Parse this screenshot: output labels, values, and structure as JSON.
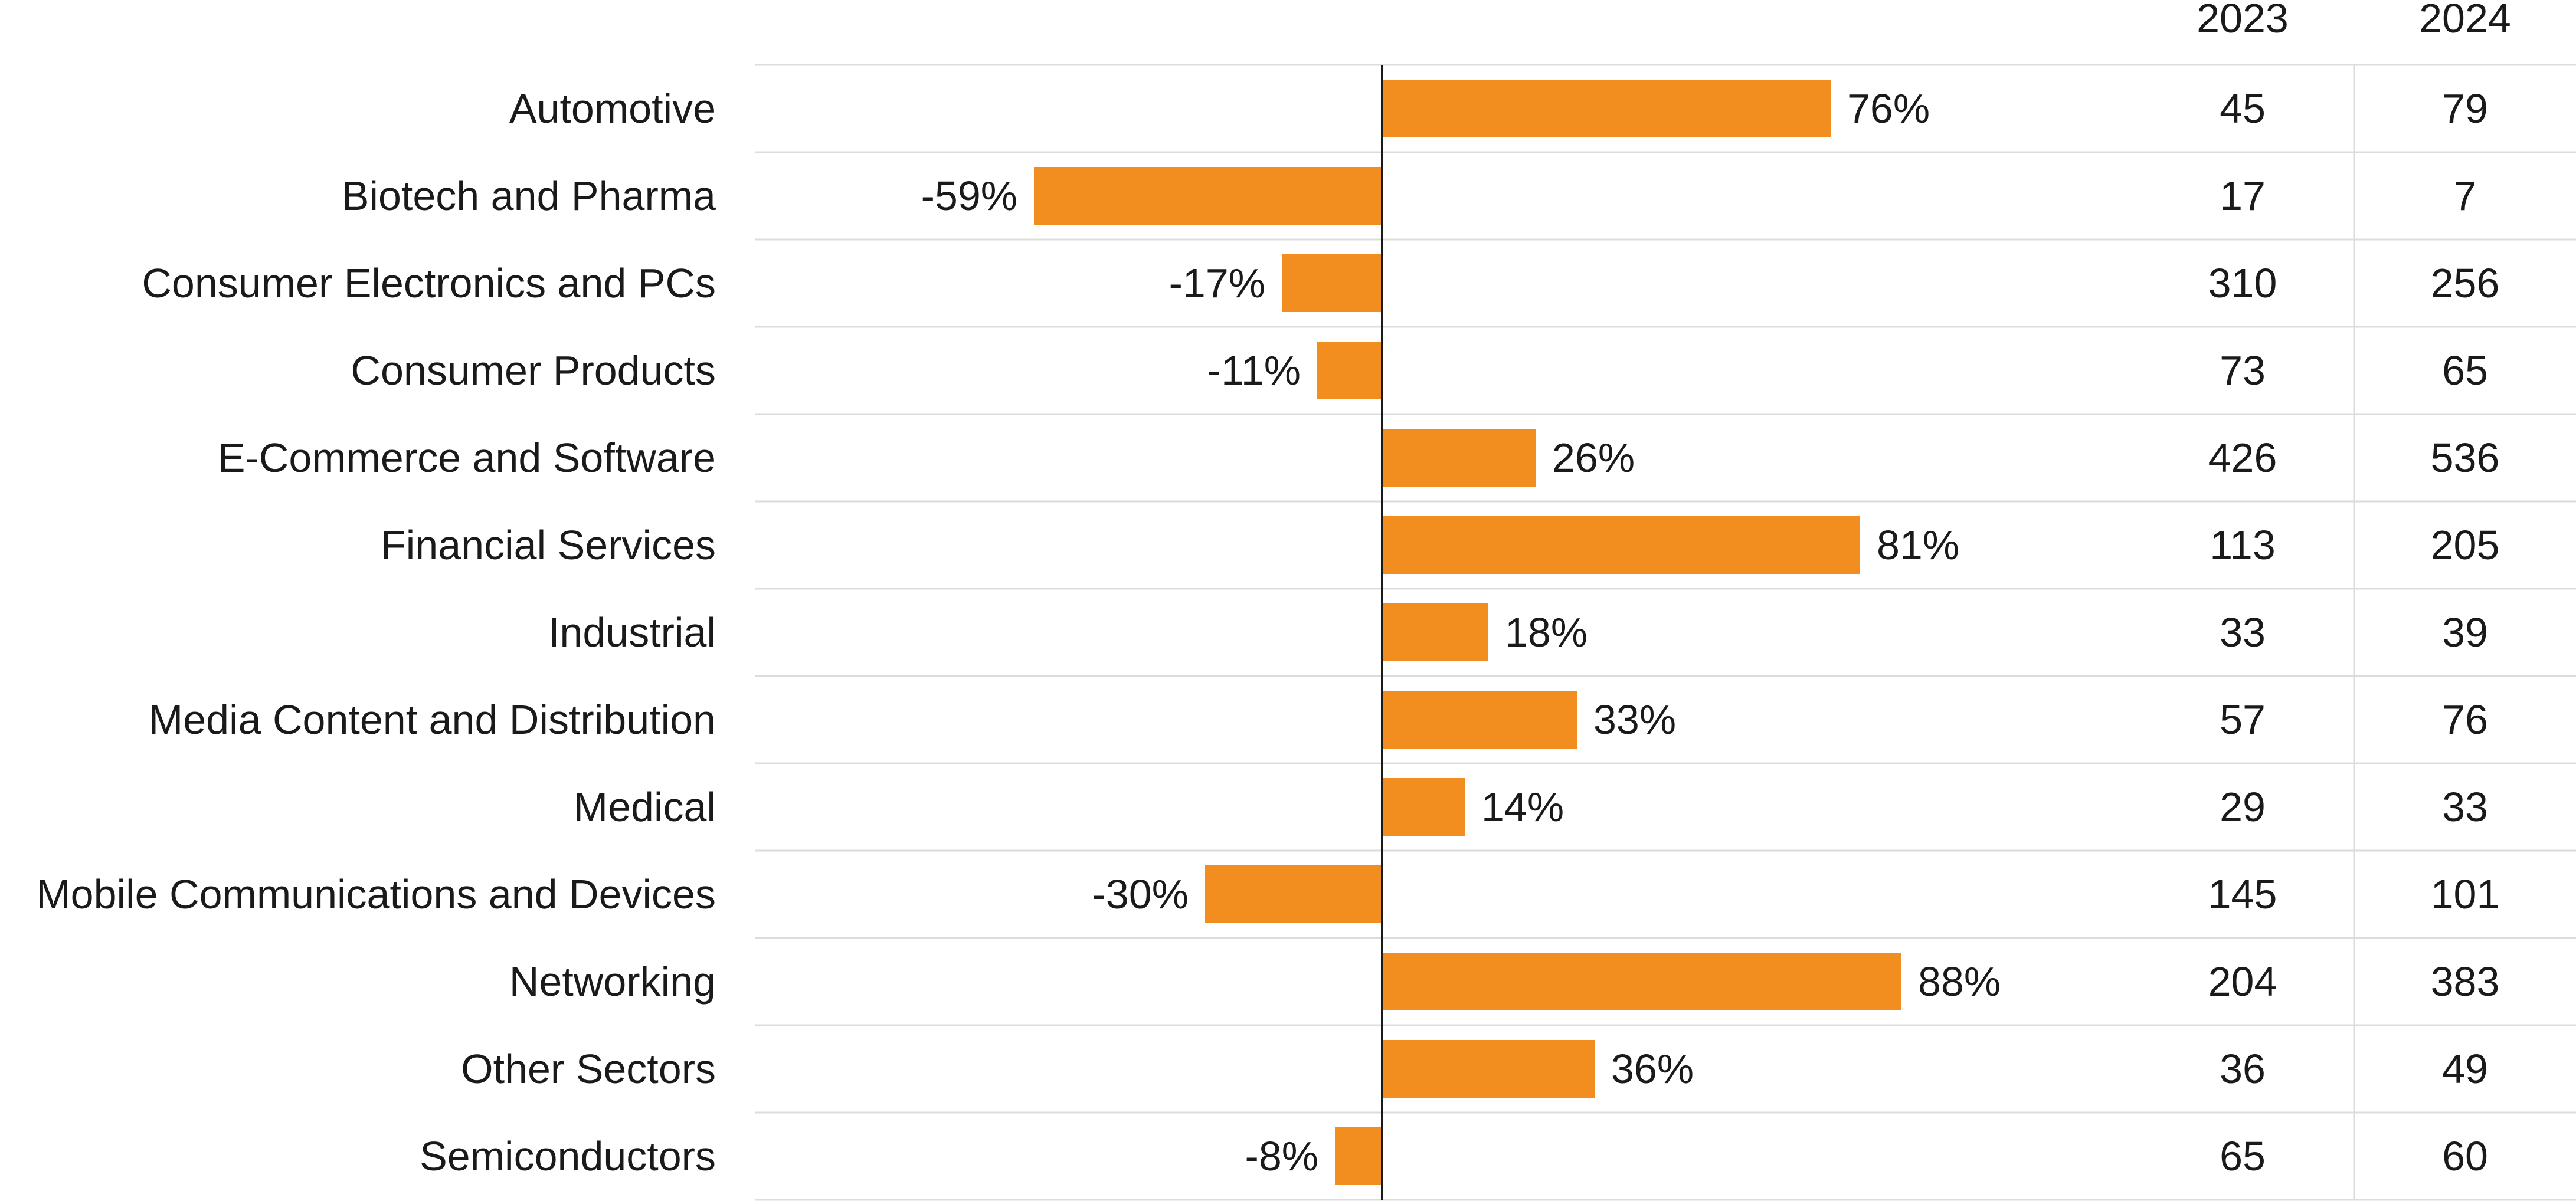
{
  "chart_data": {
    "type": "bar",
    "orientation": "horizontal",
    "categories": [
      "Automotive",
      "Biotech and Pharma",
      "Consumer Electronics and PCs",
      "Consumer Products",
      "E-Commerce and Software",
      "Financial Services",
      "Industrial",
      "Media Content and Distribution",
      "Medical",
      "Mobile Communications and Devices",
      "Networking",
      "Other Sectors",
      "Semiconductors"
    ],
    "values": [
      76,
      -59,
      -17,
      -11,
      26,
      81,
      18,
      33,
      14,
      -30,
      88,
      36,
      -8
    ],
    "value_labels": [
      "76%",
      "-59%",
      "-17%",
      "-11%",
      "26%",
      "81%",
      "18%",
      "33%",
      "14%",
      "-30%",
      "88%",
      "36%",
      "-8%"
    ],
    "unit": "%",
    "xlim": [
      -96,
      115
    ],
    "table": {
      "headers": [
        "2023",
        "2024"
      ],
      "rows": [
        [
          "45",
          "79"
        ],
        [
          "17",
          "7"
        ],
        [
          "310",
          "256"
        ],
        [
          "73",
          "65"
        ],
        [
          "426",
          "536"
        ],
        [
          "113",
          "205"
        ],
        [
          "33",
          "39"
        ],
        [
          "57",
          "76"
        ],
        [
          "29",
          "33"
        ],
        [
          "145",
          "101"
        ],
        [
          "204",
          "383"
        ],
        [
          "36",
          "49"
        ],
        [
          "65",
          "60"
        ]
      ]
    },
    "colors": {
      "bar": "#F28E1F",
      "zero_line": "#1a1a1a",
      "grid": "#dcdcdc",
      "text": "#1a1a1a"
    },
    "grid": "horizontal row separators",
    "legend": "none"
  }
}
